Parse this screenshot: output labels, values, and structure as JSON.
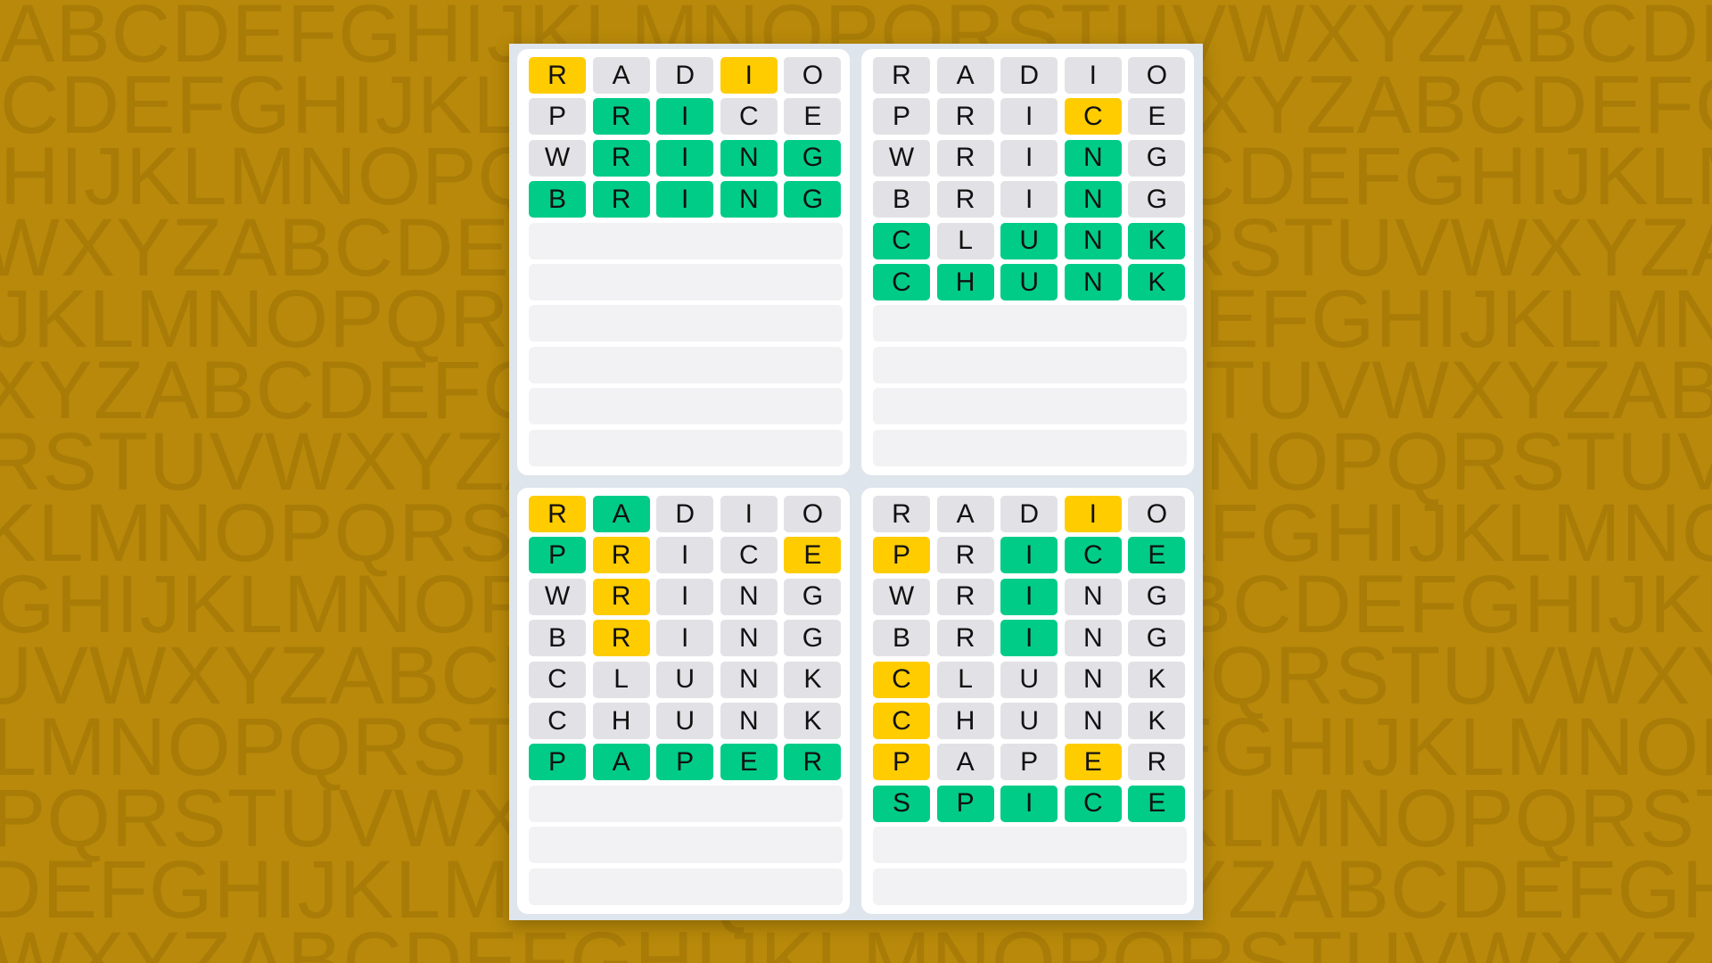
{
  "background_letters": [
    "ABCDEFGHIJKLMNOPQRSTUVWXYZABCDEF",
    "CDEFGHIJKLMNOPQRSTUVWXYZABCDEFGH",
    "HIJKLMNOPQRSTUVWXYZABCDEFGHIJKLM",
    "WXYZABCDEFGHIJKLMNOPQRSTUVWXYZAB",
    "JKLMNOPQRSTUVWXYZABCDEFGHIJKLMNO",
    "XYZABCDEFGHIJKLMNOPQRSTUVWXYZABC",
    "RSTUVWXYZABCDEFGHIJKLMNOPQRSTUVW",
    "KLMNOPQRSTUVWXYZABCDEFGHIJKLMNOP",
    "GHIJKLMNOPQRSTUVWXYZABCDEFGHIJKL",
    "UVWXYZABCDEFGHIJKLMNOPQRSTUVWXYZ",
    "LMNOPQRSTUVWXYZABCDEFGHIJKLMNOPQ",
    "PQRSTUVWXYZABCDEFGHIJKLMNOPQRSTU",
    "DEFGHIJKLMNOPQRSTUVWXYZABCDEFGHI",
    "WXYZABCDEFGHIJKLMNOPQRSTUVWXYZAB"
  ],
  "colors": {
    "correct": "#00cc88",
    "present": "#ffcc00",
    "absent": "#e2e2e6",
    "empty": "#f2f2f4",
    "background": "#b8890a"
  },
  "total_rows": 10,
  "boards": [
    {
      "guesses": [
        {
          "word": "RADIO",
          "states": "PAAPA"
        },
        {
          "word": "PRICE",
          "states": "ACCAA"
        },
        {
          "word": "WRING",
          "states": "ACCCC"
        },
        {
          "word": "BRING",
          "states": "CCCCC"
        }
      ]
    },
    {
      "guesses": [
        {
          "word": "RADIO",
          "states": "AAAAA"
        },
        {
          "word": "PRICE",
          "states": "AAAPA"
        },
        {
          "word": "WRING",
          "states": "AAACA"
        },
        {
          "word": "BRING",
          "states": "AAACA"
        },
        {
          "word": "CLUNK",
          "states": "CACCC"
        },
        {
          "word": "CHUNK",
          "states": "CCCCC"
        }
      ]
    },
    {
      "guesses": [
        {
          "word": "RADIO",
          "states": "PCAAA"
        },
        {
          "word": "PRICE",
          "states": "CPAAP"
        },
        {
          "word": "WRING",
          "states": "APAAA"
        },
        {
          "word": "BRING",
          "states": "APAAA"
        },
        {
          "word": "CLUNK",
          "states": "AAAAA"
        },
        {
          "word": "CHUNK",
          "states": "AAAAA"
        },
        {
          "word": "PAPER",
          "states": "CCCCC"
        }
      ]
    },
    {
      "guesses": [
        {
          "word": "RADIO",
          "states": "AAAPA"
        },
        {
          "word": "PRICE",
          "states": "PACCC"
        },
        {
          "word": "WRING",
          "states": "AACAA"
        },
        {
          "word": "BRING",
          "states": "AACAA"
        },
        {
          "word": "CLUNK",
          "states": "PAAAA"
        },
        {
          "word": "CHUNK",
          "states": "PAAAA"
        },
        {
          "word": "PAPER",
          "states": "PAAPA"
        },
        {
          "word": "SPICE",
          "states": "CCCCC"
        }
      ]
    }
  ]
}
